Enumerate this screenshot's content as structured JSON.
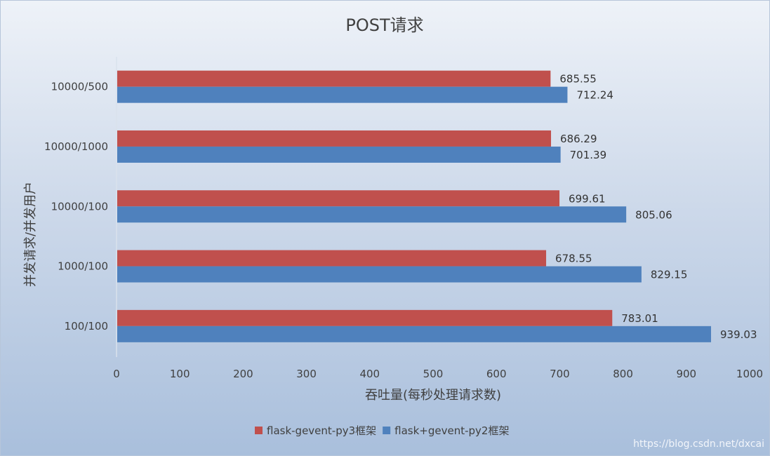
{
  "chart_data": {
    "type": "bar",
    "orientation": "horizontal",
    "title": "POST请求",
    "xlabel": "吞吐量(每秒处理请求数)",
    "ylabel": "并发请求/并发用户",
    "categories": [
      "10000/500",
      "10000/1000",
      "10000/100",
      "1000/100",
      "100/100"
    ],
    "series": [
      {
        "name": "flask-gevent-py3框架",
        "color": "#c0504d",
        "values": [
          685.55,
          686.29,
          699.61,
          678.55,
          783.01
        ]
      },
      {
        "name": "flask+gevent-py2框架",
        "color": "#4f81bd",
        "values": [
          712.24,
          701.39,
          805.06,
          829.15,
          939.03
        ]
      }
    ],
    "xlim": [
      0,
      1000
    ],
    "xticks": [
      0,
      100,
      200,
      300,
      400,
      500,
      600,
      700,
      800,
      900,
      1000
    ],
    "legend_position": "bottom",
    "grid": false
  },
  "watermark": "https://blog.csdn.net/dxcai"
}
